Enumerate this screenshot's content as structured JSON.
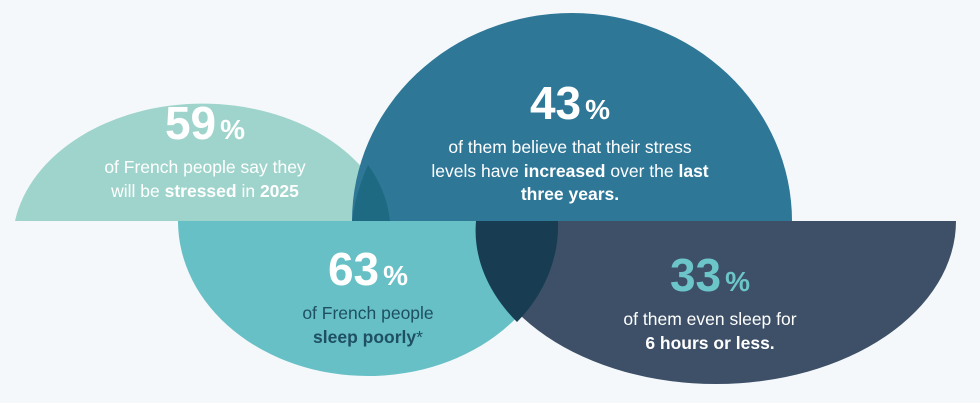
{
  "colors": {
    "background": "#f4f8fb",
    "light_teal": "#9fd4cc",
    "teal": "#66c0c6",
    "blue": "#2e7797",
    "navy": "#3d5068",
    "accent_number": "#6cc6c9"
  },
  "stats": {
    "s59": {
      "value": "59",
      "unit": "%",
      "line1": "of French people say they",
      "line2_a": "will be ",
      "line2_b": "stressed",
      "line2_c": " in ",
      "line2_d": "2025"
    },
    "s43": {
      "value": "43",
      "unit": "%",
      "line1": "of them believe that their stress",
      "line2_a": "levels have ",
      "line2_b": "increased",
      "line2_c": " over the ",
      "line2_d": "last",
      "line3": "three years."
    },
    "s63": {
      "value": "63",
      "unit": "%",
      "line1": "of French people",
      "line2_a": "sleep poorly",
      "line2_b": "*"
    },
    "s33": {
      "value": "33",
      "unit": "%",
      "line1": "of them even sleep for",
      "line2": "6 hours or less."
    }
  }
}
